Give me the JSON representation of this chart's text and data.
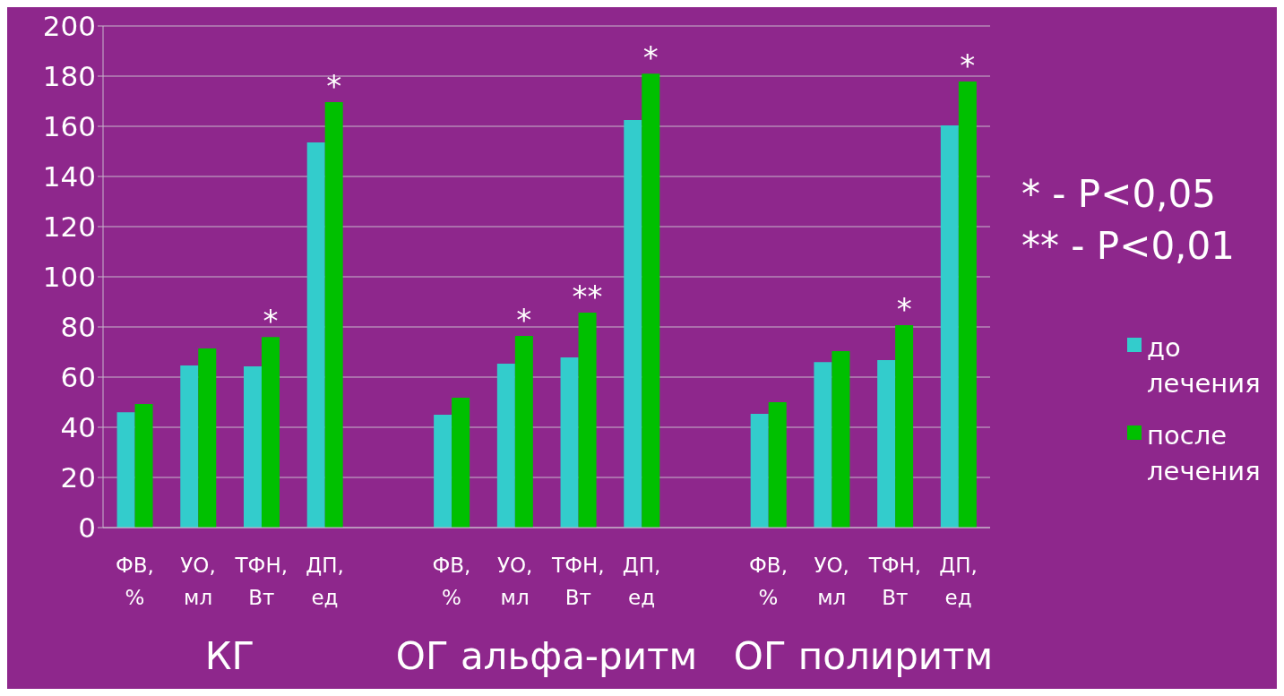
{
  "chart_data": {
    "type": "bar",
    "categories": [
      "ФВ, %",
      "УО, мл",
      "ТФН, Вт",
      "ДП, ед",
      null,
      "ФВ, %",
      "УО, мл",
      "ТФН, Вт",
      "ДП, ед",
      null,
      "ФВ, %",
      "УО, мл",
      "ТФН, Вт",
      "ДП, ед"
    ],
    "series": [
      {
        "name": "до лечения",
        "color": "#33cccc",
        "values": [
          46,
          64.6,
          64.3,
          153.6,
          null,
          45,
          65.4,
          67.9,
          162.5,
          null,
          45.4,
          66,
          66.8,
          160.4
        ]
      },
      {
        "name": "после лечения",
        "color": "#00c000",
        "values": [
          49.3,
          71.4,
          76,
          169.6,
          null,
          51.8,
          76.4,
          85.7,
          181,
          null,
          50,
          70.4,
          80.7,
          177.9
        ],
        "value_labels": [
          null,
          null,
          "*",
          "*",
          null,
          null,
          "*",
          "**",
          "*",
          null,
          null,
          null,
          "*",
          "*"
        ]
      }
    ],
    "ylim": [
      0,
      200
    ],
    "yticks": [
      0,
      20,
      40,
      60,
      80,
      100,
      120,
      140,
      160,
      180,
      200
    ],
    "grid": "y",
    "legend": "right",
    "annotations": [
      "* - P<0,05",
      "** - P<0,01",
      "КГ",
      "ОГ альфа-ритм",
      "ОГ полиритм"
    ]
  }
}
